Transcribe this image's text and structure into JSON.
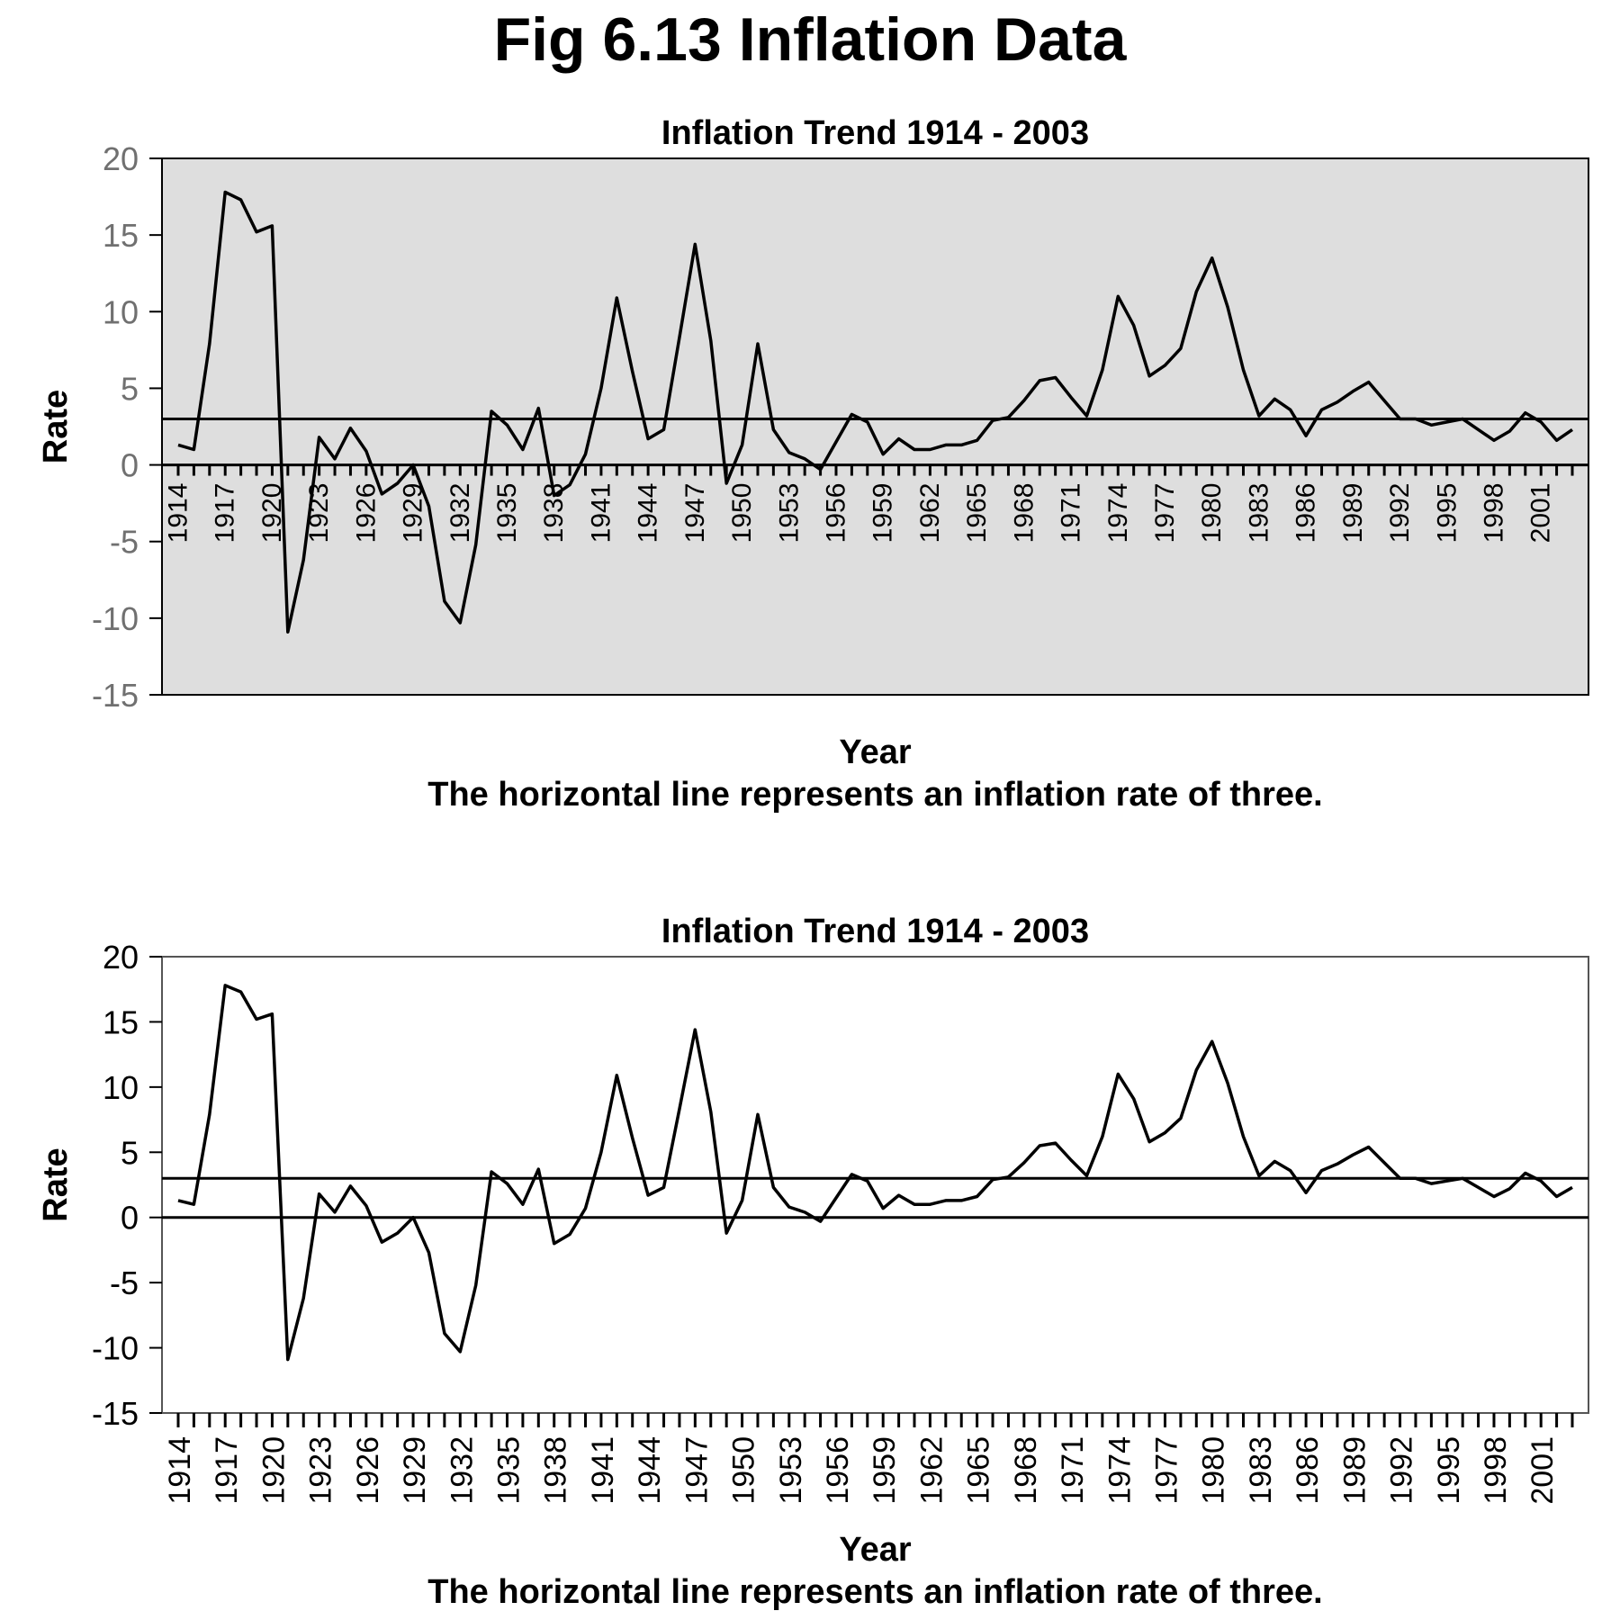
{
  "figure": {
    "title": "Fig 6.13 Inflation Data"
  },
  "chart_data": [
    {
      "type": "line",
      "title": "Inflation Trend 1914 - 2003",
      "xlabel": "Year",
      "ylabel": "Rate",
      "caption": "The horizontal line represents an inflation rate of three.",
      "background": "#dedede",
      "ytick_color": "#707070",
      "xtick_placement": "at zero line",
      "ylim": [
        -15,
        20
      ],
      "yticks": [
        "-15",
        "-10",
        "-5",
        "0",
        "5",
        "10",
        "15",
        "20"
      ],
      "xticks": [
        "1914",
        "1917",
        "1920",
        "1923",
        "1926",
        "1929",
        "1932",
        "1935",
        "1938",
        "1941",
        "1944",
        "1947",
        "1950",
        "1953",
        "1956",
        "1959",
        "1962",
        "1965",
        "1968",
        "1971",
        "1974",
        "1977",
        "1980",
        "1983",
        "1986",
        "1989",
        "1992",
        "1995",
        "1998",
        "2001"
      ],
      "reference_lines": [
        3,
        0
      ],
      "x_start": 1914,
      "x_end": 2003,
      "values": [
        1.3,
        1.0,
        7.9,
        17.8,
        17.3,
        15.2,
        15.6,
        -10.9,
        -6.2,
        1.8,
        0.4,
        2.4,
        0.9,
        -1.9,
        -1.2,
        0.0,
        -2.7,
        -8.9,
        -10.3,
        -5.2,
        3.5,
        2.6,
        1.0,
        3.7,
        -2.0,
        -1.3,
        0.7,
        5.0,
        10.9,
        6.1,
        1.7,
        2.3,
        8.3,
        14.4,
        8.1,
        -1.2,
        1.3,
        7.9,
        2.3,
        0.8,
        0.4,
        -0.3,
        1.5,
        3.3,
        2.8,
        0.7,
        1.7,
        1.0,
        1.0,
        1.3,
        1.3,
        1.6,
        2.9,
        3.1,
        4.2,
        5.5,
        5.7,
        4.4,
        3.2,
        6.2,
        11.0,
        9.1,
        5.8,
        6.5,
        7.6,
        11.3,
        13.5,
        10.3,
        6.2,
        3.2,
        4.3,
        3.6,
        1.9,
        3.6,
        4.1,
        4.8,
        5.4,
        4.2,
        3.0,
        3.0,
        2.6,
        2.8,
        3.0,
        2.3,
        1.6,
        2.2,
        3.4,
        2.8,
        1.6,
        2.3
      ]
    },
    {
      "type": "line",
      "title": "Inflation Trend 1914 - 2003",
      "xlabel": "Year",
      "ylabel": "Rate",
      "caption": "The horizontal line represents an inflation rate of three.",
      "background": "#ffffff",
      "ytick_color": "#000000",
      "xtick_placement": "at bottom axis",
      "ylim": [
        -15,
        20
      ],
      "yticks": [
        "-15",
        "-10",
        "-5",
        "0",
        "5",
        "10",
        "15",
        "20"
      ],
      "xticks": [
        "1914",
        "1917",
        "1920",
        "1923",
        "1926",
        "1929",
        "1932",
        "1935",
        "1938",
        "1941",
        "1944",
        "1947",
        "1950",
        "1953",
        "1956",
        "1959",
        "1962",
        "1965",
        "1968",
        "1971",
        "1974",
        "1977",
        "1980",
        "1983",
        "1986",
        "1989",
        "1992",
        "1995",
        "1998",
        "2001"
      ],
      "reference_lines": [
        3,
        0
      ],
      "x_start": 1914,
      "x_end": 2003,
      "values": [
        1.3,
        1.0,
        7.9,
        17.8,
        17.3,
        15.2,
        15.6,
        -10.9,
        -6.2,
        1.8,
        0.4,
        2.4,
        0.9,
        -1.9,
        -1.2,
        0.0,
        -2.7,
        -8.9,
        -10.3,
        -5.2,
        3.5,
        2.6,
        1.0,
        3.7,
        -2.0,
        -1.3,
        0.7,
        5.0,
        10.9,
        6.1,
        1.7,
        2.3,
        8.3,
        14.4,
        8.1,
        -1.2,
        1.3,
        7.9,
        2.3,
        0.8,
        0.4,
        -0.3,
        1.5,
        3.3,
        2.8,
        0.7,
        1.7,
        1.0,
        1.0,
        1.3,
        1.3,
        1.6,
        2.9,
        3.1,
        4.2,
        5.5,
        5.7,
        4.4,
        3.2,
        6.2,
        11.0,
        9.1,
        5.8,
        6.5,
        7.6,
        11.3,
        13.5,
        10.3,
        6.2,
        3.2,
        4.3,
        3.6,
        1.9,
        3.6,
        4.1,
        4.8,
        5.4,
        4.2,
        3.0,
        3.0,
        2.6,
        2.8,
        3.0,
        2.3,
        1.6,
        2.2,
        3.4,
        2.8,
        1.6,
        2.3
      ]
    }
  ]
}
